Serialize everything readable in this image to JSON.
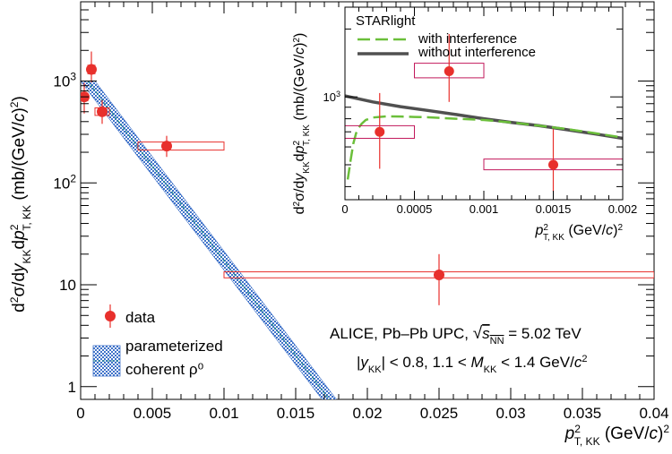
{
  "chart_data": [
    {
      "type": "scatter",
      "xlabel_main": "p",
      "xlabel_sup": "2",
      "xlabel_sub": "T, KK",
      "xlabel_unit": "(GeV/c)²",
      "ylabel": "d²σ/dy_KK dp²_T,KK (mb/(GeV/c)²)",
      "x_scale": "linear",
      "y_scale": "log",
      "xlim": [
        0,
        0.04
      ],
      "ylim": [
        0.75,
        6000
      ],
      "x_ticks": [
        "0",
        "0.005",
        "0.01",
        "0.015",
        "0.02",
        "0.025",
        "0.03",
        "0.035",
        "0.04"
      ],
      "y_ticks": [
        "1",
        "10",
        "10²",
        "10³"
      ],
      "legend": [
        "data",
        "parameterized",
        "coherent ρ⁰"
      ],
      "legend_position": "bottom-left",
      "annotations": [
        "ALICE, Pb–Pb UPC, √s_NN = 5.02 TeV",
        "|y_KK| < 0.8,  1.1 < M_KK < 1.4 GeV/c²"
      ],
      "series": [
        {
          "name": "data",
          "points": [
            {
              "x": 0.00025,
              "y": 700,
              "stat_lo": 480,
              "stat_hi": 960,
              "sys_xlo": 0.0,
              "sys_xhi": 0.0005,
              "sys_lo": 640,
              "sys_hi": 760
            },
            {
              "x": 0.00075,
              "y": 1300,
              "stat_lo": 970,
              "stat_hi": 1950,
              "sys_xlo": 0.0005,
              "sys_xhi": 0.001,
              "sys_lo": 1180,
              "sys_hi": 1430
            },
            {
              "x": 0.0015,
              "y": 500,
              "stat_lo": 380,
              "stat_hi": 650,
              "sys_xlo": 0.001,
              "sys_xhi": 0.002,
              "sys_lo": 460,
              "sys_hi": 545
            },
            {
              "x": 0.006,
              "y": 230,
              "stat_lo": 180,
              "stat_hi": 290,
              "sys_xlo": 0.004,
              "sys_xhi": 0.01,
              "sys_lo": 210,
              "sys_hi": 252
            },
            {
              "x": 0.025,
              "y": 12.5,
              "stat_lo": 6.3,
              "stat_hi": 20,
              "sys_xlo": 0.01,
              "sys_xhi": 0.04,
              "sys_lo": 11.7,
              "sys_hi": 13.4
            }
          ]
        },
        {
          "name": "parameterized coherent ρ⁰",
          "type": "band",
          "x_start": 0.0005,
          "y_start": 1000,
          "x_end": 0.0175,
          "y_end": 0.7,
          "slope_per_unit_x": -426
        }
      ]
    },
    {
      "type": "line",
      "xlabel_main": "p",
      "xlabel_sup": "2",
      "xlabel_sub": "T, KK",
      "xlabel_unit": "(GeV/c)²",
      "ylabel": "d²σ/dy_KK dp²_T,KK (mb/(GeV/c)²)",
      "x_scale": "linear",
      "y_scale": "log",
      "xlim": [
        0,
        0.002
      ],
      "ylim": [
        350,
        2500
      ],
      "x_ticks": [
        "0",
        "0.0005",
        "0.001",
        "0.0015",
        "0.002"
      ],
      "y_ticks": [
        "10³"
      ],
      "legend_title": "STARlight",
      "legend": [
        "with interference",
        "without interference"
      ],
      "legend_position": "top-left",
      "series": [
        {
          "name": "with interference",
          "color": "#6bbf3a",
          "style": "dashed",
          "x": [
            2e-05,
            4e-05,
            6e-05,
            8e-05,
            0.0001,
            0.00012,
            0.00015,
            0.0002,
            0.0003,
            0.0004,
            0.0005,
            0.0006,
            0.0008,
            0.001,
            0.0012,
            0.0014,
            0.0016,
            0.0018,
            0.002
          ],
          "y": [
            430,
            520,
            620,
            690,
            730,
            760,
            790,
            810,
            820,
            818,
            815,
            812,
            800,
            790,
            770,
            745,
            720,
            690,
            660
          ]
        },
        {
          "name": "without interference",
          "color": "#505050",
          "style": "solid",
          "x": [
            0,
            0.0001,
            0.0002,
            0.0004,
            0.0006,
            0.0008,
            0.001,
            0.0012,
            0.0014,
            0.0016,
            0.0018,
            0.002
          ],
          "y": [
            1010,
            980,
            950,
            905,
            870,
            835,
            800,
            770,
            745,
            715,
            685,
            655
          ]
        },
        {
          "name": "data",
          "points": [
            {
              "x": 0.00025,
              "y": 700,
              "stat_lo": 480,
              "stat_hi": 1040,
              "sys_xlo": 0.0,
              "sys_xhi": 0.0005,
              "sys_lo": 655,
              "sys_hi": 745
            },
            {
              "x": 0.00075,
              "y": 1300,
              "stat_lo": 950,
              "stat_hi": 1900,
              "sys_xlo": 0.0005,
              "sys_xhi": 0.001,
              "sys_lo": 1215,
              "sys_hi": 1410
            },
            {
              "x": 0.0015,
              "y": 500,
              "stat_lo": 380,
              "stat_hi": 720,
              "sys_xlo": 0.001,
              "sys_xhi": 0.002,
              "sys_lo": 475,
              "sys_hi": 530
            }
          ]
        }
      ]
    }
  ]
}
